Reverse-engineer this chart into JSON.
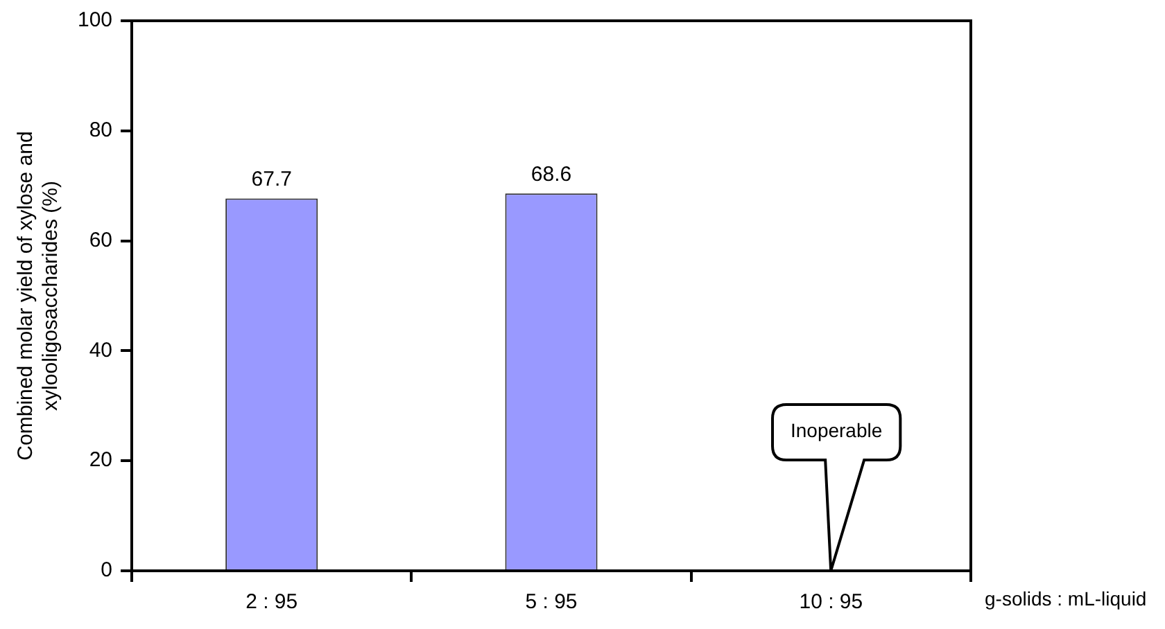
{
  "chart_data": {
    "type": "bar",
    "categories": [
      "2 : 95",
      "5 : 95",
      "10 : 95"
    ],
    "values": [
      67.7,
      68.6,
      null
    ],
    "color": "#9999ff",
    "value_labels": [
      "67.7",
      "68.6",
      null
    ],
    "ylim": [
      0,
      100
    ],
    "yticks": [
      0,
      20,
      40,
      60,
      80,
      100
    ],
    "grid": false,
    "xlabel": "g-solids : mL-liquid",
    "ylabel": "Combined molar yield of xylose and xylooligosaccharides (%)",
    "annotations": [
      "Inoperable"
    ]
  }
}
